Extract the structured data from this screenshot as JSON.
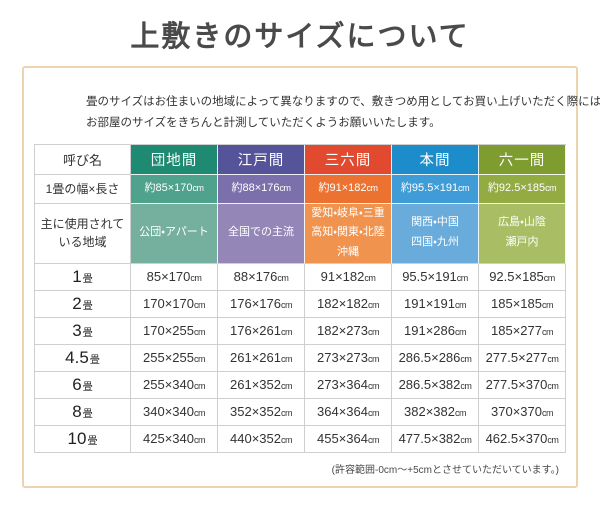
{
  "page": {
    "title": "上敷きのサイズについて",
    "intro_lines": [
      "畳のサイズはお住まいの地域によって異なりますので、敷きつめ用としてお買い上げいただく際には、",
      "お部屋のサイズをきちんと計測していただくようお願いいたします。"
    ],
    "note": "(許容範囲-0cm〜+5cmとさせていただいています。)"
  },
  "table": {
    "corner_header": "呼び名",
    "unit_row_label": "1畳の幅×長さ",
    "region_row_label_lines": [
      "主に使用されて",
      "いる地域"
    ],
    "unit": "cm",
    "tatami_suffix": "畳",
    "columns": [
      {
        "name": "団地間",
        "one_mat_size": "約85×170",
        "regions": [
          "公団・アパート"
        ],
        "colors": {
          "header": "#1e8a72",
          "size": "#4fa28c",
          "region": "#74b09d"
        }
      },
      {
        "name": "江戸間",
        "one_mat_size": "約88×176",
        "regions": [
          "全国での主流"
        ],
        "colors": {
          "header": "#55539a",
          "size": "#7b70ab",
          "region": "#9487b8"
        }
      },
      {
        "name": "三六間",
        "one_mat_size": "約91×182",
        "regions": [
          "愛知・岐阜・三重",
          "高知・関東・北陸",
          "沖縄"
        ],
        "colors": {
          "header": "#e14a2f",
          "size": "#ec7232",
          "region": "#f0934f"
        }
      },
      {
        "name": "本間",
        "one_mat_size": "約95.5×191",
        "regions": [
          "関西・中国",
          "四国・九州"
        ],
        "colors": {
          "header": "#1c8ccb",
          "size": "#3f9cd6",
          "region": "#69abdb"
        }
      },
      {
        "name": "六一間",
        "one_mat_size": "約92.5×185",
        "regions": [
          "広島・山陰",
          "瀬戸内"
        ],
        "colors": {
          "header": "#7e9c2f",
          "size": "#93ab43",
          "region": "#a9be64"
        }
      }
    ],
    "size_rows": [
      {
        "count": "1",
        "values": [
          "85×170",
          "88×176",
          "91×182",
          "95.5×191",
          "92.5×185"
        ]
      },
      {
        "count": "2",
        "values": [
          "170×170",
          "176×176",
          "182×182",
          "191×191",
          "185×185"
        ]
      },
      {
        "count": "3",
        "values": [
          "170×255",
          "176×261",
          "182×273",
          "191×286",
          "185×277"
        ]
      },
      {
        "count": "4.5",
        "values": [
          "255×255",
          "261×261",
          "273×273",
          "286.5×286",
          "277.5×277"
        ]
      },
      {
        "count": "6",
        "values": [
          "255×340",
          "261×352",
          "273×364",
          "286.5×382",
          "277.5×370"
        ]
      },
      {
        "count": "8",
        "values": [
          "340×340",
          "352×352",
          "364×364",
          "382×382",
          "370×370"
        ]
      },
      {
        "count": "10",
        "values": [
          "425×340",
          "440×352",
          "455×364",
          "477.5×382",
          "462.5×370"
        ]
      }
    ]
  }
}
